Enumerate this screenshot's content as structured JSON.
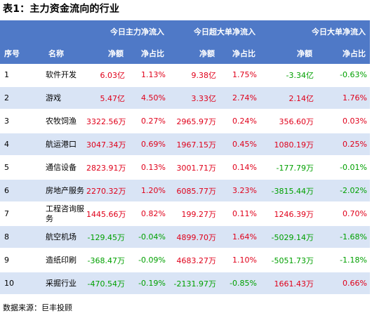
{
  "title": "表1：主力资金流向的行业",
  "header": {
    "index": "序号",
    "name": "名称",
    "groups": [
      "今日主力净流入",
      "今日超大单净流入",
      "今日大单净流入"
    ],
    "sub": [
      "净额",
      "净占比",
      "净额",
      "净占比",
      "净额",
      "净占比"
    ]
  },
  "colors": {
    "header_bg": "#4f79c7",
    "stripe": "#d9e4f5",
    "positive": "#e0001a",
    "negative": "#00a000"
  },
  "rows": [
    {
      "idx": "1",
      "name": "软件开发",
      "v": [
        "6.03亿",
        "1.13%",
        "9.38亿",
        "1.75%",
        "-3.34亿",
        "-0.63%"
      ]
    },
    {
      "idx": "2",
      "name": "游戏",
      "v": [
        "5.47亿",
        "4.50%",
        "3.33亿",
        "2.74%",
        "2.14亿",
        "1.76%"
      ]
    },
    {
      "idx": "3",
      "name": "农牧饲渔",
      "v": [
        "3322.56万",
        "0.27%",
        "2965.97万",
        "0.24%",
        "356.60万",
        "0.03%"
      ]
    },
    {
      "idx": "4",
      "name": "航运港口",
      "v": [
        "3047.34万",
        "0.69%",
        "1967.15万",
        "0.45%",
        "1080.19万",
        "0.25%"
      ]
    },
    {
      "idx": "5",
      "name": "通信设备",
      "v": [
        "2823.91万",
        "0.13%",
        "3001.71万",
        "0.14%",
        "-177.79万",
        "-0.01%"
      ]
    },
    {
      "idx": "6",
      "name": "房地产服务",
      "v": [
        "2270.32万",
        "1.20%",
        "6085.77万",
        "3.23%",
        "-3815.44万",
        "-2.02%"
      ]
    },
    {
      "idx": "7",
      "name": "工程咨询服务",
      "v": [
        "1445.66万",
        "0.82%",
        "199.27万",
        "0.11%",
        "1246.39万",
        "0.70%"
      ]
    },
    {
      "idx": "8",
      "name": "航空机场",
      "v": [
        "-129.45万",
        "-0.04%",
        "4899.70万",
        "1.64%",
        "-5029.14万",
        "-1.68%"
      ]
    },
    {
      "idx": "9",
      "name": "造纸印刷",
      "v": [
        "-368.47万",
        "-0.09%",
        "4683.27万",
        "1.10%",
        "-5051.73万",
        "-1.18%"
      ]
    },
    {
      "idx": "10",
      "name": "采掘行业",
      "v": [
        "-470.54万",
        "-0.19%",
        "-2131.97万",
        "-0.85%",
        "1661.43万",
        "0.66%"
      ]
    }
  ],
  "source": "数据来源：巨丰投顾"
}
